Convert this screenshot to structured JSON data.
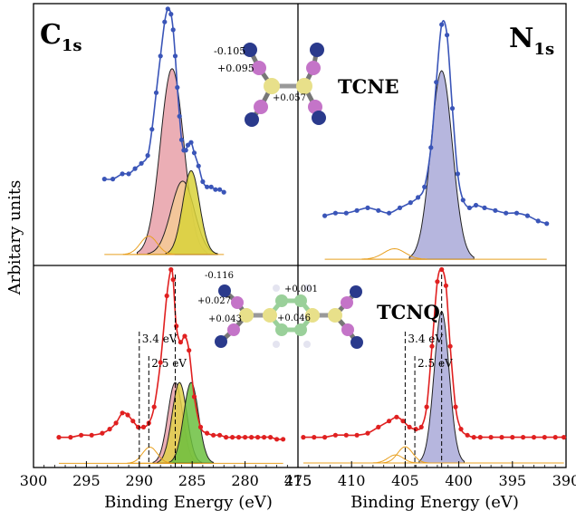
{
  "figure": {
    "ylabel": "Arbitary units",
    "xlabel": "Binding Energy (eV)"
  },
  "chart_data": [
    {
      "type": "scatter",
      "panel": "C 1s - TCNE",
      "title": "C1s",
      "xlim": [
        300,
        275
      ],
      "ylim": [
        0,
        1
      ],
      "ylabel": "Arbitary units",
      "xlabel": "",
      "series": [
        {
          "name": "",
          "kind": "data-points",
          "color": "#3a55b8",
          "x": [
            293.3,
            292.5,
            291.6,
            291.0,
            290.4,
            289.8,
            289.2,
            288.8,
            288.4,
            288.0,
            287.6,
            287.3,
            287.0,
            286.8,
            286.6,
            286.4,
            286.2,
            286.0,
            285.8,
            285.6,
            285.4,
            285.1,
            284.8,
            284.4,
            284.0,
            283.6,
            283.2,
            282.8,
            282.4,
            282.0
          ],
          "y": [
            0.33,
            0.33,
            0.35,
            0.35,
            0.37,
            0.39,
            0.42,
            0.52,
            0.66,
            0.8,
            0.93,
            0.98,
            0.96,
            0.9,
            0.8,
            0.68,
            0.57,
            0.48,
            0.44,
            0.44,
            0.46,
            0.47,
            0.43,
            0.38,
            0.32,
            0.3,
            0.3,
            0.29,
            0.29,
            0.28
          ]
        },
        {
          "name": "",
          "kind": "component",
          "color": "#e8a0a8",
          "center": 286.9,
          "amplitude": 0.71,
          "width": 1.1
        },
        {
          "name": "",
          "kind": "component",
          "color": "#f5ca95",
          "center": 285.9,
          "amplitude": 0.28,
          "width": 1.1
        },
        {
          "name": "",
          "kind": "component",
          "color": "#d8d23a",
          "center": 285.1,
          "amplitude": 0.32,
          "width": 0.8
        },
        {
          "name": "",
          "kind": "component",
          "color": "#e8a020",
          "center": 289.1,
          "amplitude": 0.07,
          "width": 0.8
        }
      ]
    },
    {
      "type": "scatter",
      "panel": "N 1s - TCNE",
      "title": "N1s",
      "xlim": [
        415,
        390
      ],
      "ylim": [
        0,
        1
      ],
      "series": [
        {
          "name": "",
          "kind": "data-points",
          "color": "#3a55b8",
          "x": [
            412.5,
            411.5,
            410.5,
            409.5,
            408.5,
            407.5,
            406.5,
            405.5,
            404.5,
            403.8,
            403.2,
            402.6,
            402.1,
            401.6,
            401.1,
            400.6,
            400.1,
            399.6,
            399.0,
            398.4,
            397.6,
            396.6,
            395.6,
            394.6,
            393.6,
            392.6,
            391.8
          ],
          "y": [
            0.19,
            0.2,
            0.2,
            0.21,
            0.22,
            0.21,
            0.2,
            0.22,
            0.24,
            0.26,
            0.3,
            0.45,
            0.7,
            0.92,
            0.88,
            0.6,
            0.35,
            0.25,
            0.22,
            0.23,
            0.22,
            0.21,
            0.2,
            0.2,
            0.19,
            0.17,
            0.16
          ]
        },
        {
          "name": "",
          "kind": "component",
          "color": "#a9a9d8",
          "center": 401.6,
          "amplitude": 0.72,
          "width": 1.0
        },
        {
          "name": "",
          "kind": "component",
          "color": "#e8a020",
          "center": 406.0,
          "amplitude": 0.04,
          "width": 1.0
        }
      ]
    },
    {
      "type": "scatter",
      "panel": "C 1s - TCNQ",
      "xlim": [
        300,
        275
      ],
      "ylim": [
        0,
        1
      ],
      "xlabel": "Binding Energy (eV)",
      "xticks": [
        300,
        295,
        290,
        285,
        280,
        275
      ],
      "series": [
        {
          "name": "",
          "kind": "data-points",
          "color": "#e02020",
          "x": [
            297.6,
            296.5,
            295.5,
            294.5,
            293.5,
            292.8,
            292.2,
            291.6,
            291.1,
            290.6,
            290.1,
            289.6,
            289.1,
            288.6,
            288.0,
            287.4,
            287.0,
            286.8,
            286.5,
            286.1,
            285.7,
            285.3,
            284.8,
            284.2,
            283.6,
            283.0,
            282.4,
            281.8,
            281.2,
            280.6,
            280.0,
            279.4,
            278.8,
            278.2,
            277.6,
            277.0,
            276.4
          ],
          "y": [
            0.15,
            0.15,
            0.16,
            0.16,
            0.17,
            0.19,
            0.22,
            0.27,
            0.26,
            0.23,
            0.2,
            0.2,
            0.22,
            0.3,
            0.52,
            0.85,
            0.98,
            0.93,
            0.7,
            0.62,
            0.65,
            0.58,
            0.35,
            0.2,
            0.17,
            0.16,
            0.16,
            0.15,
            0.15,
            0.15,
            0.15,
            0.15,
            0.15,
            0.15,
            0.15,
            0.14,
            0.14
          ]
        },
        {
          "name": "",
          "kind": "component",
          "color": "#e8a0a8",
          "center": 286.6,
          "amplitude": 0.4,
          "width": 0.7
        },
        {
          "name": "",
          "kind": "component",
          "color": "#e0d04a",
          "center": 286.2,
          "amplitude": 0.4,
          "width": 0.7
        },
        {
          "name": "",
          "kind": "component",
          "color": "#6cc040",
          "center": 285.1,
          "amplitude": 0.4,
          "width": 0.7
        },
        {
          "name": "",
          "kind": "component",
          "color": "#e8a020",
          "center": 289.0,
          "amplitude": 0.08,
          "width": 0.7
        }
      ],
      "annotations": [
        "3.4 eV",
        "2.5 eV"
      ]
    },
    {
      "type": "scatter",
      "panel": "N 1s - TCNQ",
      "xlim": [
        415,
        390
      ],
      "ylim": [
        0,
        1
      ],
      "xlabel": "Binding Energy (eV)",
      "xticks": [
        415,
        410,
        405,
        400,
        395,
        390
      ],
      "series": [
        {
          "name": "",
          "kind": "data-points",
          "color": "#e02020",
          "x": [
            414.5,
            413.5,
            412.5,
            411.5,
            410.5,
            409.5,
            408.5,
            407.5,
            406.5,
            405.8,
            405.2,
            404.6,
            404.0,
            403.5,
            403.0,
            402.5,
            402.0,
            401.6,
            401.2,
            400.8,
            400.3,
            399.8,
            399.2,
            398.6,
            398.0,
            397.0,
            396.0,
            395.0,
            394.0,
            393.0,
            392.0,
            391.0,
            390.2
          ],
          "y": [
            0.15,
            0.15,
            0.15,
            0.16,
            0.16,
            0.16,
            0.17,
            0.2,
            0.23,
            0.25,
            0.23,
            0.2,
            0.19,
            0.2,
            0.3,
            0.6,
            0.92,
            0.98,
            0.9,
            0.6,
            0.3,
            0.19,
            0.16,
            0.15,
            0.15,
            0.15,
            0.15,
            0.15,
            0.15,
            0.15,
            0.15,
            0.15,
            0.15
          ]
        },
        {
          "name": "",
          "kind": "component",
          "color": "#a9a9d8",
          "center": 401.6,
          "amplitude": 0.75,
          "width": 0.7
        },
        {
          "name": "",
          "kind": "component",
          "color": "#e8a020",
          "center": 405.0,
          "amplitude": 0.08,
          "width": 0.7
        },
        {
          "name": "",
          "kind": "component",
          "color": "#e8a020",
          "center": 405.9,
          "amplitude": 0.04,
          "width": 0.7
        }
      ],
      "annotations": [
        "3.4 eV",
        "2.5 eV"
      ]
    }
  ],
  "labels": {
    "c_main": "C",
    "c_sub": "1s",
    "n_main": "N",
    "n_sub": "1s",
    "tcne": "TCNE",
    "tcnq": "TCNQ",
    "tcne_charges": [
      "-0.105",
      "+0.095",
      "+0.057"
    ],
    "tcnq_charges": [
      "-0.116",
      "+0.001",
      "+0.027",
      "+0.043",
      "+0.046"
    ]
  }
}
